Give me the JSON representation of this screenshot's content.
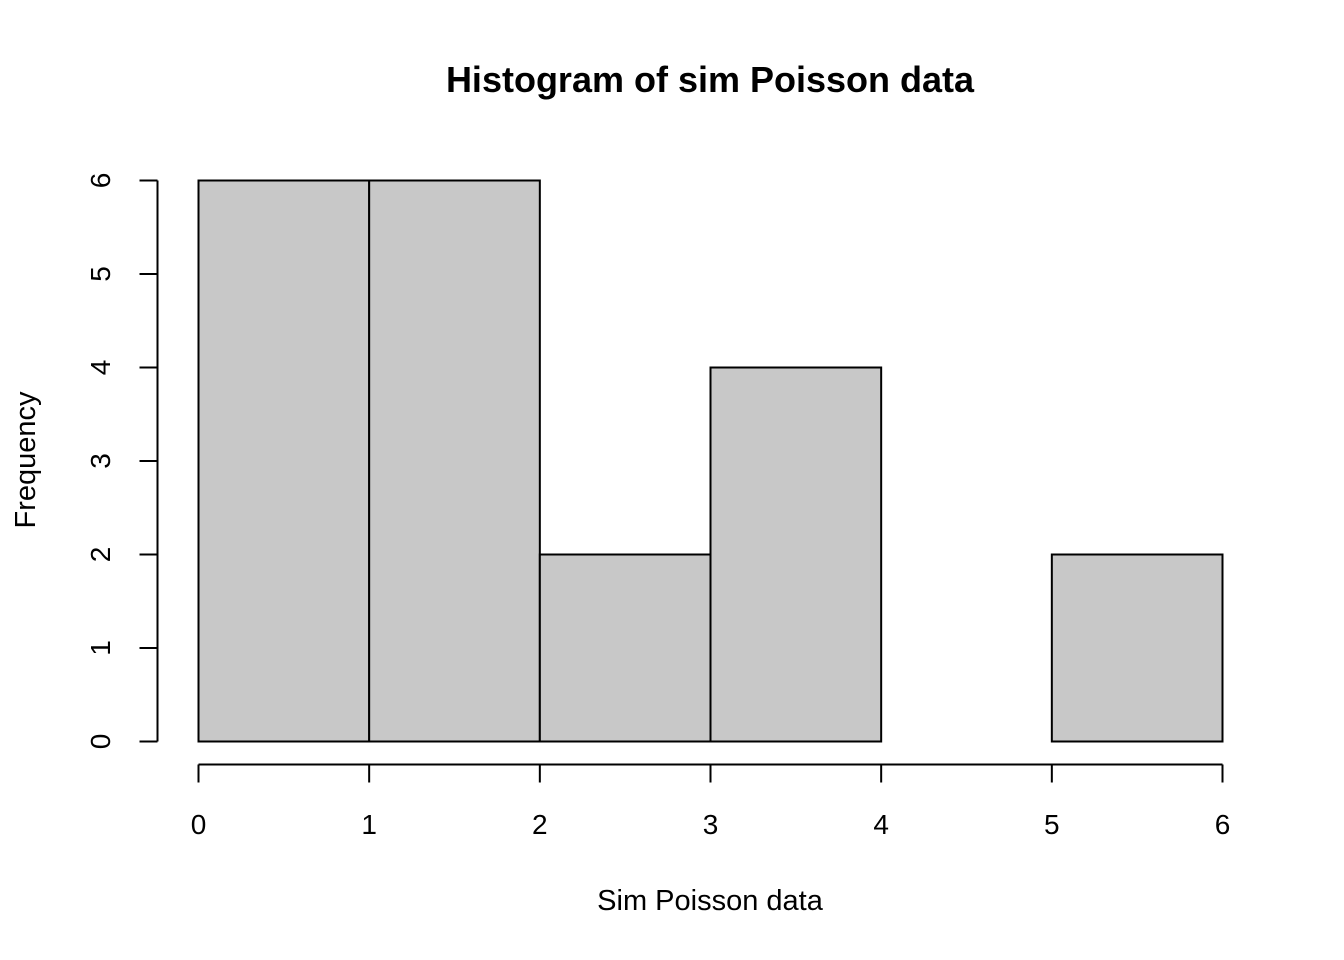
{
  "chart_data": {
    "type": "bar",
    "title": "Histogram of sim Poisson data",
    "xlabel": "Sim Poisson data",
    "ylabel": "Frequency",
    "bins": [
      [
        0,
        1
      ],
      [
        1,
        2
      ],
      [
        2,
        3
      ],
      [
        3,
        4
      ],
      [
        4,
        5
      ],
      [
        5,
        6
      ]
    ],
    "values": [
      6,
      6,
      2,
      4,
      0,
      2
    ],
    "xlim": [
      0,
      6
    ],
    "ylim": [
      0,
      6
    ],
    "xticks": [
      0,
      1,
      2,
      3,
      4,
      5,
      6
    ],
    "yticks": [
      0,
      1,
      2,
      3,
      4,
      5,
      6
    ],
    "grid": false,
    "colors": {
      "bar_fill": "#c8c8c8",
      "bar_stroke": "#000000"
    }
  }
}
